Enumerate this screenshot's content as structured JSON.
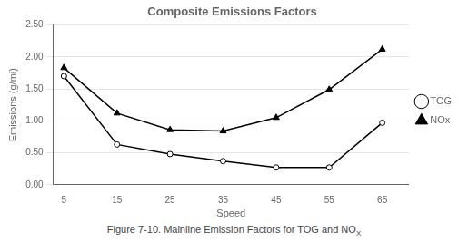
{
  "chart_data": {
    "type": "line",
    "title": "Composite Emissions Factors",
    "xlabel": "Speed",
    "ylabel": "Emissions (g/mi)",
    "x": [
      5,
      15,
      25,
      35,
      45,
      55,
      65
    ],
    "series": [
      {
        "name": "TOG",
        "color": "#000000",
        "marker": "circle",
        "values": [
          1.7,
          0.63,
          0.48,
          0.37,
          0.27,
          0.27,
          0.97
        ]
      },
      {
        "name": "NOx",
        "color": "#000000",
        "marker": "triangle",
        "values": [
          1.83,
          1.12,
          0.86,
          0.84,
          1.05,
          1.49,
          2.12
        ]
      }
    ],
    "xlim": [
      3,
      70
    ],
    "xticks": [
      5,
      15,
      25,
      35,
      45,
      55,
      65
    ],
    "ylim": [
      0.0,
      2.5
    ],
    "yticks": [
      {
        "value": 0.0,
        "label": "0.00"
      },
      {
        "value": 0.5,
        "label": "0.50"
      },
      {
        "value": 1.0,
        "label": "1.00"
      },
      {
        "value": 1.5,
        "label": "1.50"
      },
      {
        "value": 2.0,
        "label": "2.00"
      },
      {
        "value": 2.5,
        "label": "2.50"
      }
    ],
    "grid": "y",
    "legend": "right",
    "annotations": [
      {
        "text": "Figure 7-10. Mainline Emission Factors for TOG and NO",
        "subscript": "X"
      }
    ]
  }
}
